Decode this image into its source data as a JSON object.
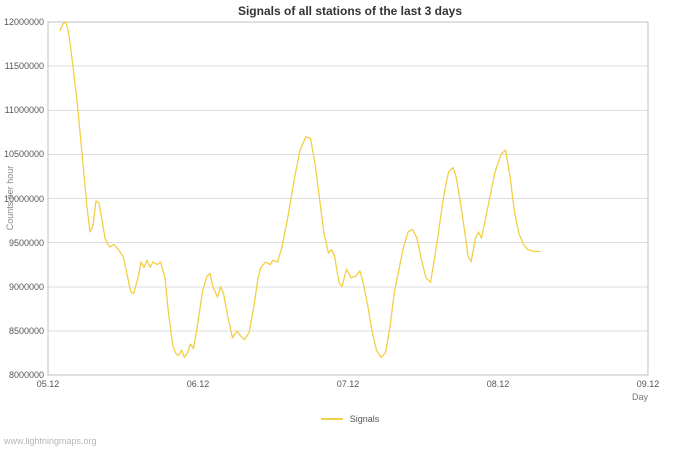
{
  "page": {
    "watermark": "www.lightningmaps.org"
  },
  "legend": {
    "label": "Signals"
  },
  "chart_data": {
    "type": "line",
    "title": "Signals of all stations of the last 3 days",
    "xlabel": "Day",
    "ylabel": "Counts per hour",
    "x_tick_labels": [
      "05.12",
      "06.12",
      "07.12",
      "08.12",
      "09.12"
    ],
    "x_tick_values": [
      0,
      1,
      2,
      3,
      4
    ],
    "y_ticks": [
      8000000,
      8500000,
      9000000,
      9500000,
      10000000,
      10500000,
      11000000,
      11500000,
      12000000
    ],
    "xlim": [
      0,
      4
    ],
    "ylim": [
      8000000,
      12000000
    ],
    "grid": "horizontal",
    "legend_position": "bottom-center",
    "x_unit": "days since 05.12",
    "series": [
      {
        "name": "Signals",
        "color": "#f2cf45",
        "x": [
          0.08,
          0.1,
          0.12,
          0.14,
          0.17,
          0.2,
          0.23,
          0.26,
          0.28,
          0.3,
          0.32,
          0.34,
          0.36,
          0.38,
          0.41,
          0.44,
          0.47,
          0.5,
          0.52,
          0.55,
          0.57,
          0.6,
          0.62,
          0.64,
          0.66,
          0.68,
          0.7,
          0.73,
          0.75,
          0.78,
          0.8,
          0.83,
          0.85,
          0.87,
          0.89,
          0.91,
          0.93,
          0.95,
          0.97,
          1.0,
          1.03,
          1.06,
          1.08,
          1.1,
          1.13,
          1.15,
          1.17,
          1.2,
          1.23,
          1.26,
          1.28,
          1.31,
          1.34,
          1.37,
          1.4,
          1.42,
          1.45,
          1.48,
          1.5,
          1.53,
          1.56,
          1.6,
          1.64,
          1.68,
          1.72,
          1.75,
          1.78,
          1.81,
          1.84,
          1.87,
          1.89,
          1.91,
          1.94,
          1.96,
          1.99,
          2.02,
          2.05,
          2.08,
          2.1,
          2.13,
          2.16,
          2.19,
          2.22,
          2.25,
          2.28,
          2.31,
          2.34,
          2.37,
          2.4,
          2.43,
          2.46,
          2.49,
          2.52,
          2.55,
          2.58,
          2.61,
          2.64,
          2.67,
          2.7,
          2.72,
          2.75,
          2.78,
          2.8,
          2.82,
          2.85,
          2.87,
          2.89,
          2.92,
          2.95,
          2.98,
          3.02,
          3.05,
          3.08,
          3.11,
          3.14,
          3.17,
          3.2,
          3.24,
          3.28
        ],
        "y": [
          11900000,
          11980000,
          12000000,
          11850000,
          11450000,
          11000000,
          10450000,
          9900000,
          9620000,
          9700000,
          9970000,
          9950000,
          9750000,
          9550000,
          9450000,
          9480000,
          9420000,
          9350000,
          9200000,
          8950000,
          8920000,
          9100000,
          9280000,
          9220000,
          9300000,
          9220000,
          9280000,
          9250000,
          9280000,
          9100000,
          8750000,
          8350000,
          8250000,
          8220000,
          8280000,
          8200000,
          8250000,
          8350000,
          8300000,
          8600000,
          8950000,
          9120000,
          9150000,
          9000000,
          8880000,
          9000000,
          8920000,
          8650000,
          8420000,
          8500000,
          8450000,
          8400000,
          8480000,
          8750000,
          9100000,
          9220000,
          9280000,
          9250000,
          9300000,
          9280000,
          9450000,
          9800000,
          10200000,
          10550000,
          10700000,
          10680000,
          10400000,
          10000000,
          9600000,
          9380000,
          9420000,
          9350000,
          9050000,
          9000000,
          9200000,
          9100000,
          9120000,
          9180000,
          9050000,
          8800000,
          8500000,
          8280000,
          8200000,
          8250000,
          8550000,
          8950000,
          9200000,
          9450000,
          9620000,
          9650000,
          9550000,
          9300000,
          9100000,
          9050000,
          9350000,
          9700000,
          10050000,
          10300000,
          10350000,
          10250000,
          9950000,
          9600000,
          9350000,
          9280000,
          9550000,
          9620000,
          9550000,
          9800000,
          10050000,
          10300000,
          10500000,
          10550000,
          10250000,
          9850000,
          9600000,
          9480000,
          9420000,
          9400000,
          9400000
        ]
      }
    ]
  }
}
